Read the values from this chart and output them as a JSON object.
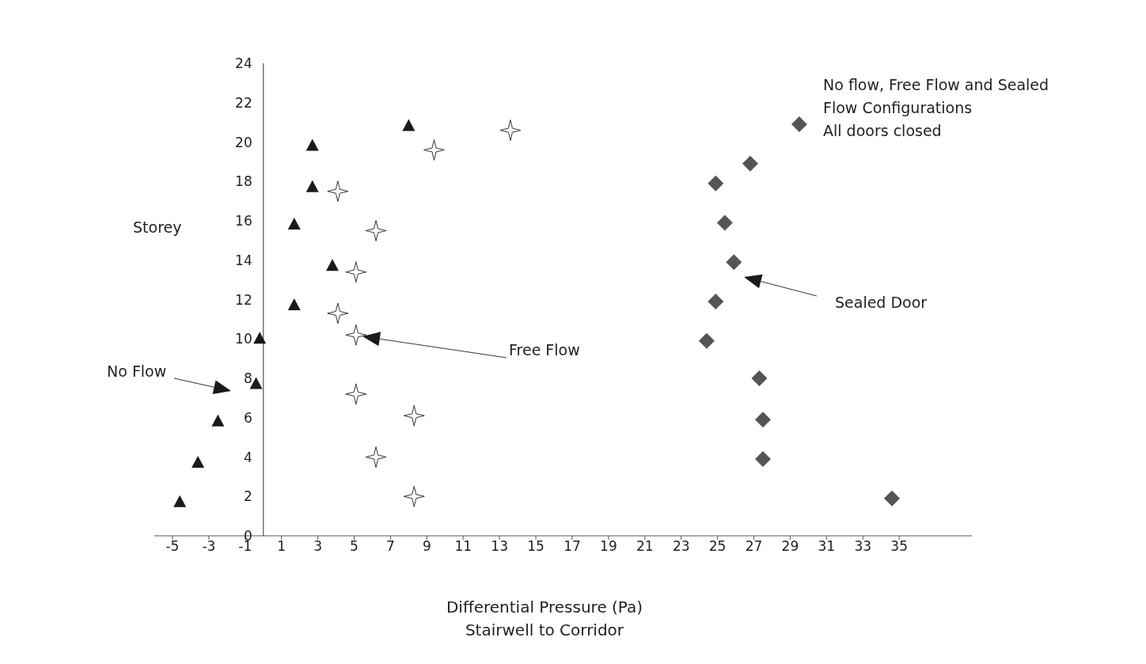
{
  "chart_data": {
    "type": "scatter",
    "title": "No flow, Free Flow and Sealed\nFlow Configurations\nAll doors closed",
    "xlabel": "Differential Pressure (Pa)\nStairwell to Corridor",
    "ylabel": "Storey",
    "xlim": [
      -6,
      39
    ],
    "xticks": [
      -5,
      -3,
      -1,
      1,
      3,
      5,
      7,
      9,
      11,
      13,
      15,
      17,
      19,
      21,
      23,
      25,
      27,
      29,
      31,
      33,
      35
    ],
    "ylim": [
      0,
      24
    ],
    "yticks": [
      0,
      2,
      4,
      6,
      8,
      10,
      12,
      14,
      16,
      18,
      20,
      22,
      24
    ],
    "grid": false,
    "legend": false,
    "series": [
      {
        "color": "#1a1a1a",
        "marker": "triangle",
        "x": [
          8.0,
          2.7,
          2.7,
          1.7,
          3.8,
          1.7,
          -0.2,
          -0.4,
          -2.5,
          -3.6,
          -4.6
        ],
        "values": [
          20.8,
          19.8,
          17.7,
          15.8,
          13.7,
          11.7,
          10.0,
          7.7,
          5.8,
          3.7,
          1.7
        ]
      },
      {
        "color": "#ffffff",
        "marker": "star",
        "x": [
          13.6,
          9.4,
          4.1,
          6.2,
          5.1,
          4.1,
          5.1,
          5.1,
          8.3,
          6.2,
          8.3
        ],
        "values": [
          20.6,
          19.6,
          17.5,
          15.5,
          13.4,
          11.3,
          10.2,
          7.2,
          6.1,
          4.0,
          2.0
        ]
      },
      {
        "color": "#555555",
        "marker": "diamond",
        "x": [
          29.5,
          26.8,
          24.9,
          25.4,
          25.9,
          24.9,
          24.4,
          27.3,
          27.5,
          27.5,
          34.6
        ],
        "values": [
          20.9,
          18.9,
          17.9,
          15.9,
          13.9,
          11.9,
          9.9,
          8.0,
          5.9,
          3.9,
          1.9
        ]
      }
    ],
    "annotations": [
      "No Flow",
      "Free Flow",
      "Sealed Door"
    ]
  }
}
